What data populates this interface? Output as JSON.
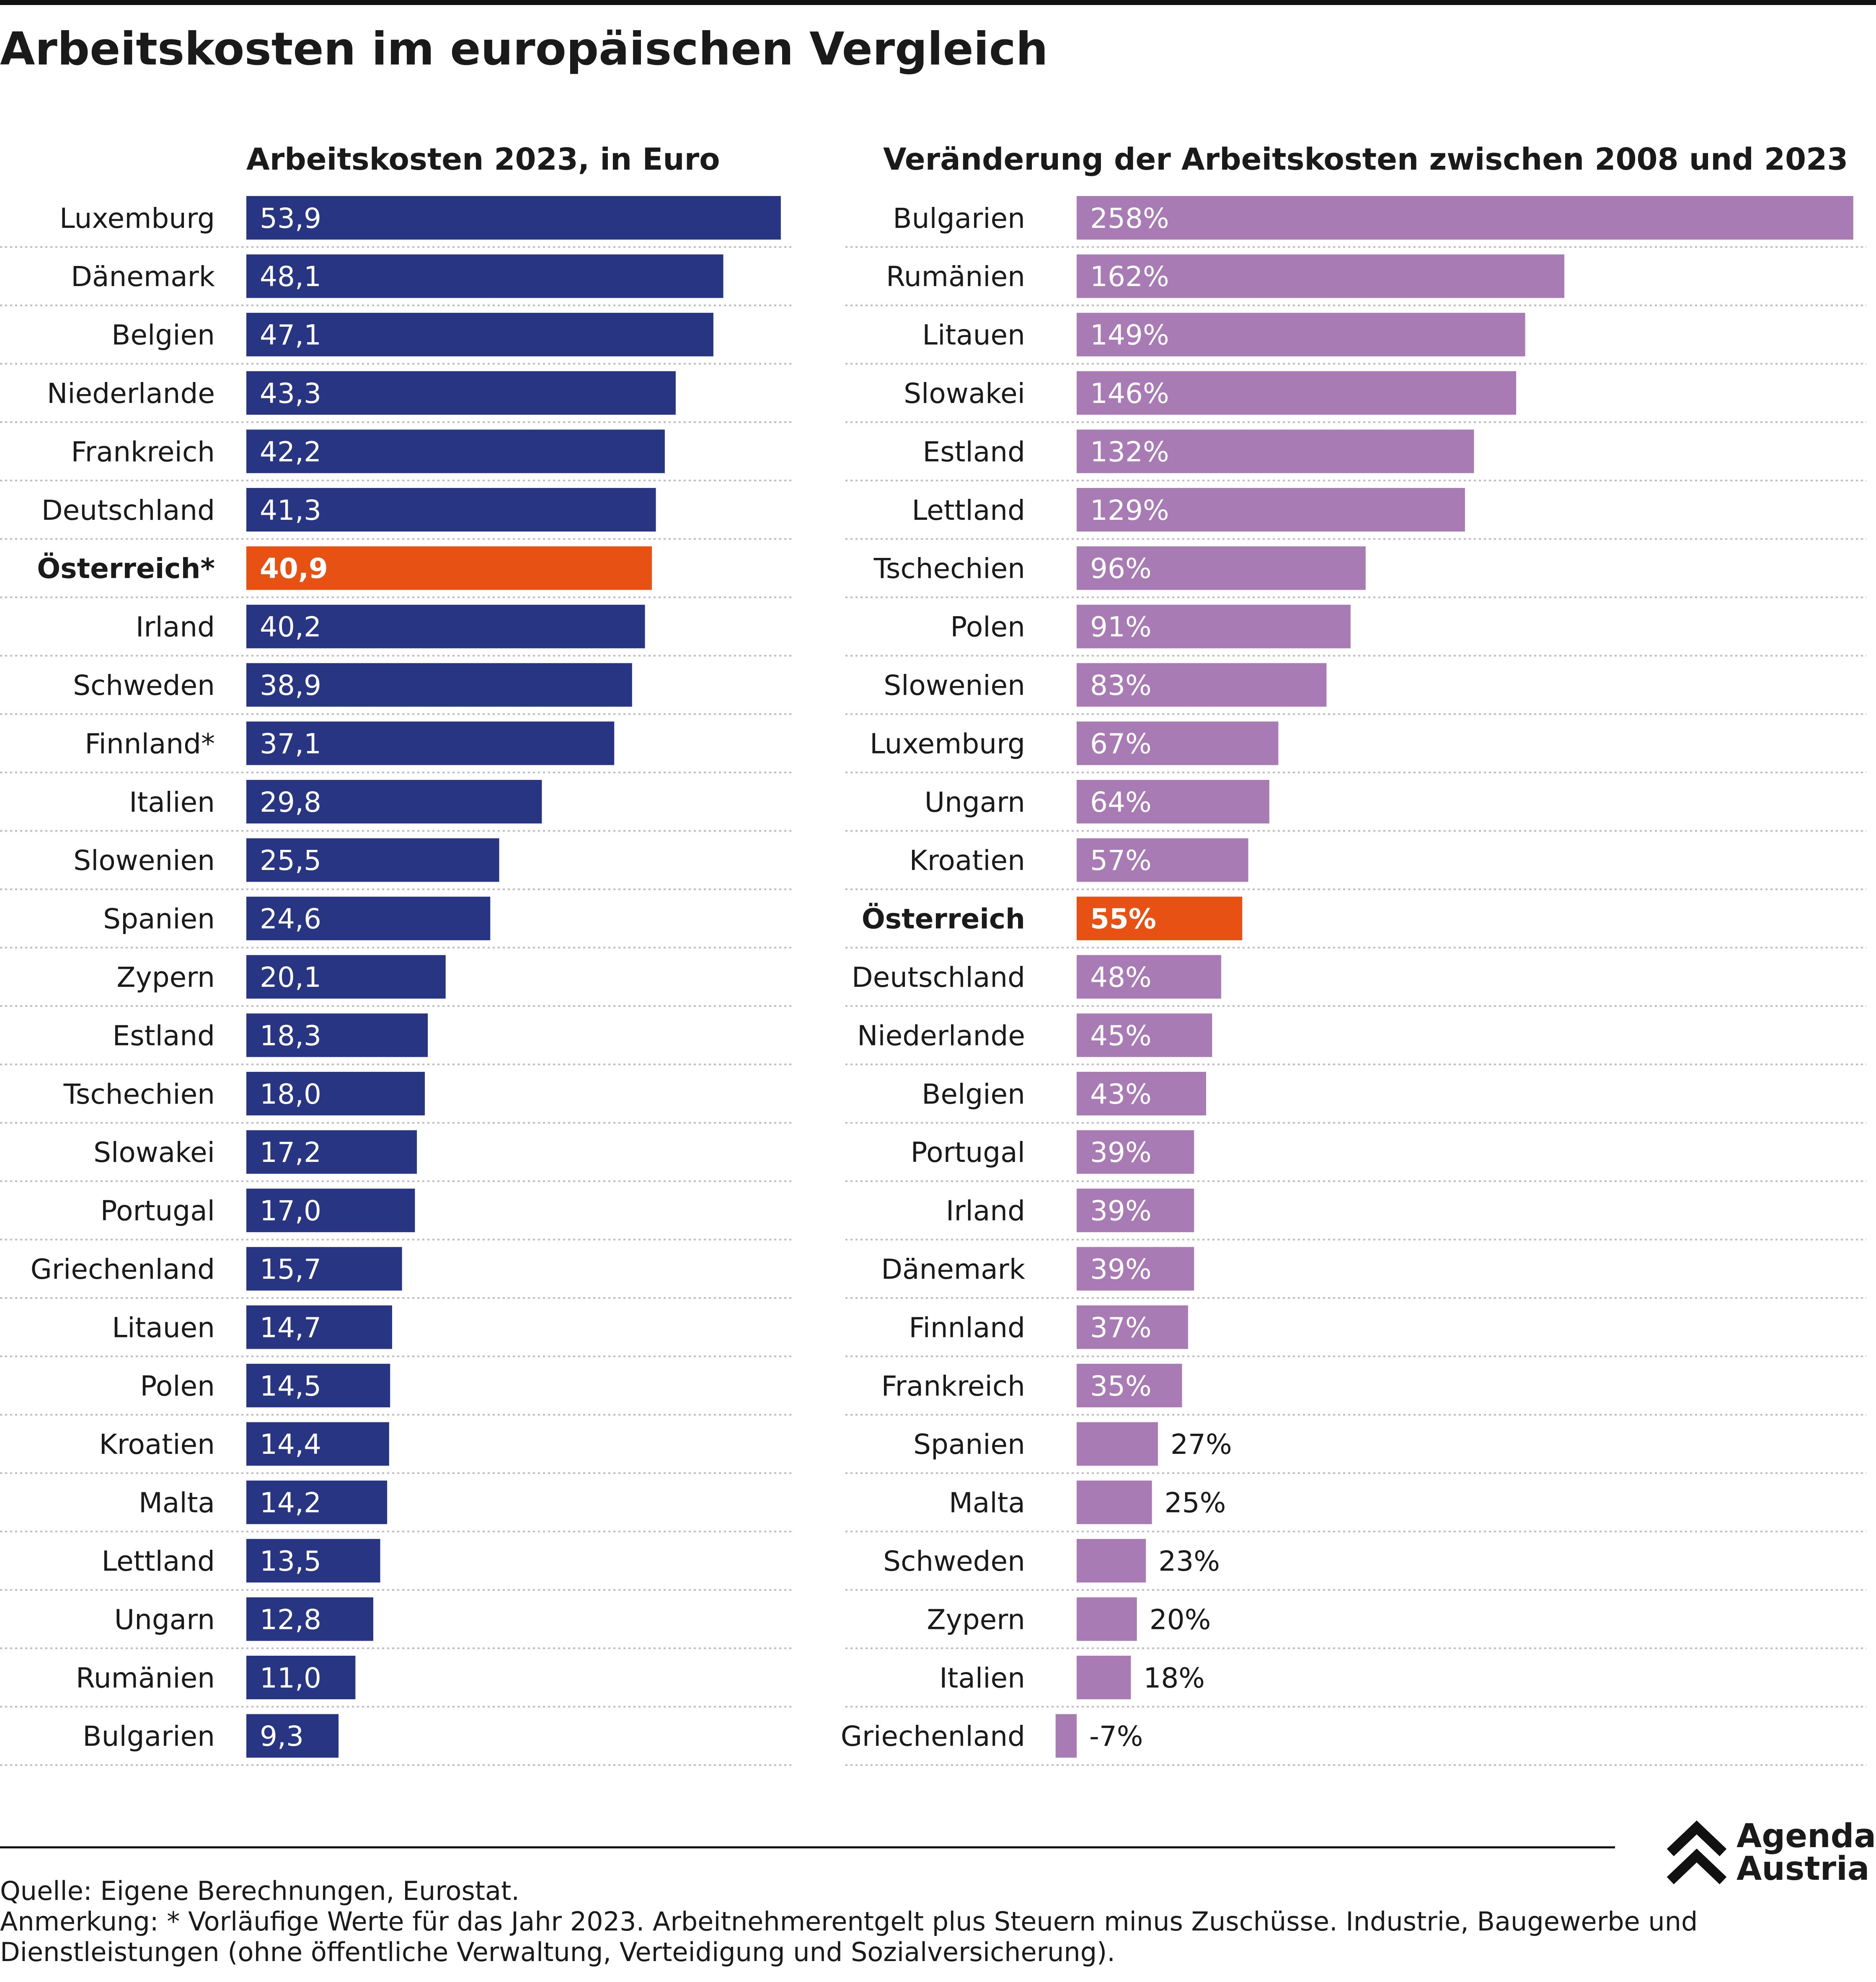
{
  "title": "Arbeitskosten im europäischen Vergleich",
  "colors": {
    "left_bar": "#283583",
    "right_bar": "#a97bb4",
    "highlight": "#e75113",
    "separator": "#bdbdbd"
  },
  "chart_data": [
    {
      "type": "bar",
      "orientation": "horizontal",
      "title": "Arbeitskosten 2023, in Euro",
      "highlight": "Österreich*",
      "categories": [
        "Luxemburg",
        "Dänemark",
        "Belgien",
        "Niederlande",
        "Frankreich",
        "Deutschland",
        "Österreich*",
        "Irland",
        "Schweden",
        "Finnland*",
        "Italien",
        "Slowenien",
        "Spanien",
        "Zypern",
        "Estland",
        "Tschechien",
        "Slowakei",
        "Portugal",
        "Griechenland",
        "Litauen",
        "Polen",
        "Kroatien",
        "Malta",
        "Lettland",
        "Ungarn",
        "Rumänien",
        "Bulgarien"
      ],
      "values": [
        53.9,
        48.1,
        47.1,
        43.3,
        42.2,
        41.3,
        40.9,
        40.2,
        38.9,
        37.1,
        29.8,
        25.5,
        24.6,
        20.1,
        18.3,
        18.0,
        17.2,
        17.0,
        15.7,
        14.7,
        14.5,
        14.4,
        14.2,
        13.5,
        12.8,
        11.0,
        9.3
      ],
      "labels": [
        "53,9",
        "48,1",
        "47,1",
        "43,3",
        "42,2",
        "41,3",
        "40,9",
        "40,2",
        "38,9",
        "37,1",
        "29,8",
        "25,5",
        "24,6",
        "20,1",
        "18,3",
        "18,0",
        "17,2",
        "17,0",
        "15,7",
        "14,7",
        "14,5",
        "14,4",
        "14,2",
        "13,5",
        "12,8",
        "11,0",
        "9,3"
      ]
    },
    {
      "type": "bar",
      "orientation": "horizontal",
      "title": "Veränderung der Arbeitskosten zwischen 2008 und 2023",
      "highlight": "Österreich",
      "categories": [
        "Bulgarien",
        "Rumänien",
        "Litauen",
        "Slowakei",
        "Estland",
        "Lettland",
        "Tschechien",
        "Polen",
        "Slowenien",
        "Luxemburg",
        "Ungarn",
        "Kroatien",
        "Österreich",
        "Deutschland",
        "Niederlande",
        "Belgien",
        "Portugal",
        "Irland",
        "Dänemark",
        "Finnland",
        "Frankreich",
        "Spanien",
        "Malta",
        "Schweden",
        "Zypern",
        "Italien",
        "Griechenland"
      ],
      "values": [
        258,
        162,
        149,
        146,
        132,
        129,
        96,
        91,
        83,
        67,
        64,
        57,
        55,
        48,
        45,
        43,
        39,
        39,
        39,
        37,
        35,
        27,
        25,
        23,
        20,
        18,
        -7
      ],
      "labels": [
        "258%",
        "162%",
        "149%",
        "146%",
        "132%",
        "129%",
        "96%",
        "91%",
        "83%",
        "67%",
        "64%",
        "57%",
        "55%",
        "48%",
        "45%",
        "43%",
        "39%",
        "39%",
        "39%",
        "37%",
        "35%",
        "27%",
        "25%",
        "23%",
        "20%",
        "18%",
        "-7%"
      ]
    }
  ],
  "footer": {
    "source": "Quelle: Eigene Berechnungen, Eurostat.",
    "note_line1": "Anmerkung: * Vorläufige Werte für das Jahr 2023. Arbeitnehmerentgelt plus Steuern minus Zuschüsse. Industrie, Baugewerbe und",
    "note_line2": "Dienstleistungen (ohne öffentliche Verwaltung, Verteidigung und Sozialversicherung)."
  },
  "logo": {
    "line1": "Agenda",
    "line2": "Austria",
    "icon": "double-chevron-up-icon"
  }
}
